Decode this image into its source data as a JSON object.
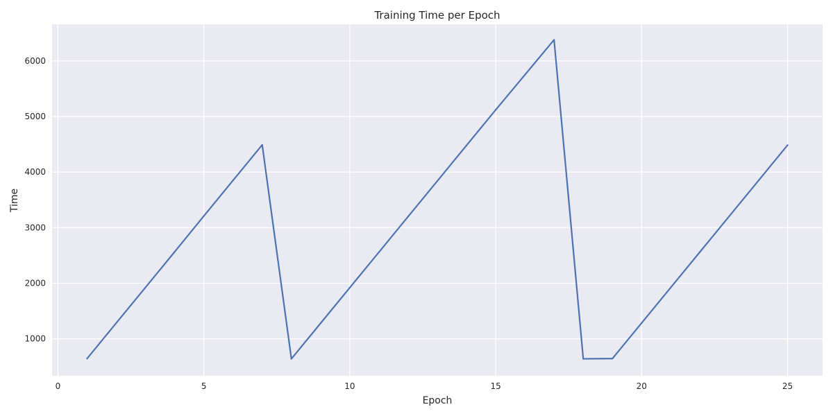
{
  "chart_data": {
    "type": "line",
    "title": "Training Time per Epoch",
    "xlabel": "Epoch",
    "ylabel": "Time",
    "xlim": [
      -0.2,
      26.2
    ],
    "ylim": [
      335,
      6660
    ],
    "xticks": [
      0,
      5,
      10,
      15,
      20,
      25
    ],
    "yticks": [
      1000,
      2000,
      3000,
      4000,
      5000,
      6000
    ],
    "grid": true,
    "legend": "none",
    "colors": {
      "line": "#4c72b0",
      "plot_bg": "#eaeaf2",
      "grid": "#ffffff"
    },
    "series": [
      {
        "x": [
          1,
          2,
          3,
          4,
          5,
          6,
          7,
          8,
          9,
          10,
          11,
          12,
          13,
          14,
          15,
          16,
          17,
          18,
          19,
          20,
          21,
          22,
          23,
          24,
          25
        ],
        "values": [
          645,
          1285,
          1925,
          2565,
          3210,
          3850,
          4490,
          640,
          1280,
          1920,
          2560,
          3200,
          3840,
          4480,
          5120,
          5750,
          6380,
          640,
          645,
          1285,
          1925,
          2565,
          3205,
          3845,
          4485
        ]
      }
    ]
  }
}
